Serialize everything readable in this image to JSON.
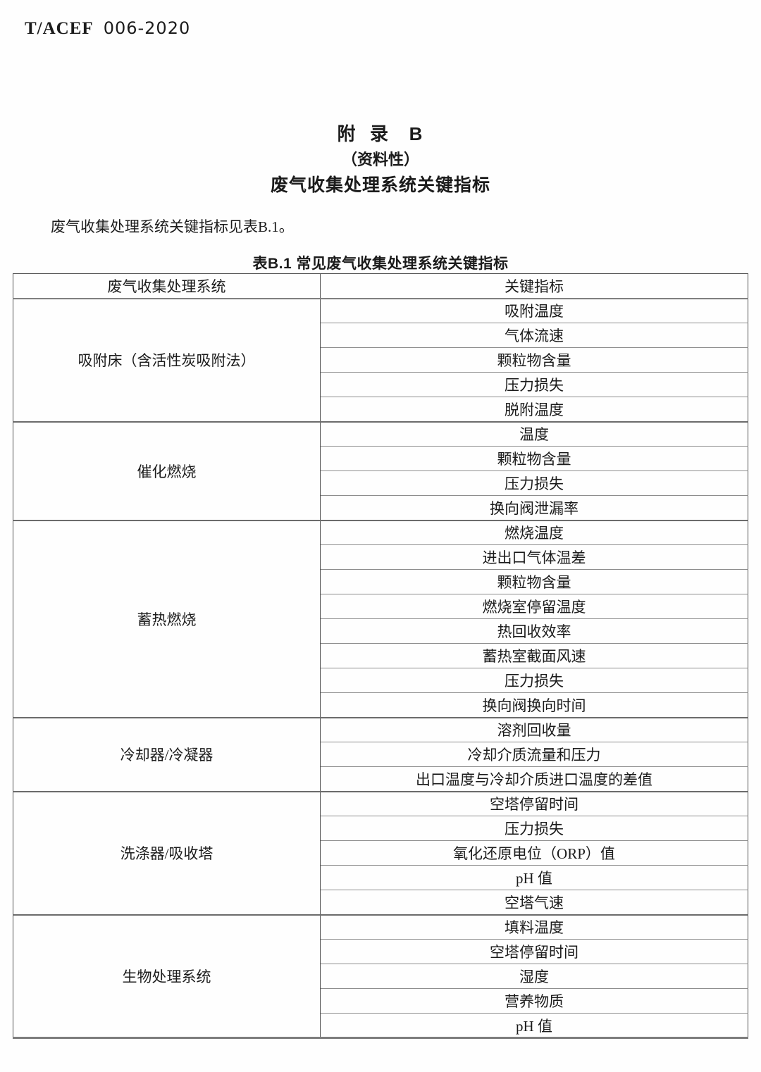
{
  "doc": {
    "code_prefix": "T/ACEF",
    "code_number": "006-2020"
  },
  "appendix": {
    "title": "附  录   B",
    "subtitle": "（资料性）",
    "heading": "废气收集处理系统关键指标",
    "intro_paragraph": "废气收集处理系统关键指标见表B.1。",
    "table_caption": "表B.1 常见废气收集处理系统关键指标"
  },
  "table": {
    "headers": [
      "废气收集处理系统",
      "关键指标"
    ],
    "sections": [
      {
        "system": "吸附床（含活性炭吸附法）",
        "indicators": [
          "吸附温度",
          "气体流速",
          "颗粒物含量",
          "压力损失",
          "脱附温度"
        ]
      },
      {
        "system": "催化燃烧",
        "indicators": [
          "温度",
          "颗粒物含量",
          "压力损失",
          "换向阀泄漏率"
        ]
      },
      {
        "system": "蓄热燃烧",
        "indicators": [
          "燃烧温度",
          "进出口气体温差",
          "颗粒物含量",
          "燃烧室停留温度",
          "热回收效率",
          "蓄热室截面风速",
          "压力损失",
          "换向阀换向时间"
        ]
      },
      {
        "system": "冷却器/冷凝器",
        "indicators": [
          "溶剂回收量",
          "冷却介质流量和压力",
          "出口温度与冷却介质进口温度的差值"
        ]
      },
      {
        "system": "洗涤器/吸收塔",
        "indicators": [
          "空塔停留时间",
          "压力损失",
          "氧化还原电位（ORP）值",
          "pH 值",
          "空塔气速"
        ]
      },
      {
        "system": "生物处理系统",
        "indicators": [
          "填料温度",
          "空塔停留时间",
          "湿度",
          "营养物质",
          "pH 值"
        ]
      }
    ]
  },
  "colors": {
    "text": "#1b1b1b",
    "background": "#fefefe",
    "border_outer": "#4f4f4f",
    "border_section": "#6b6b6b",
    "border_inner": "#8d8d8d",
    "border_header_bottom": "#7f7f7f"
  }
}
